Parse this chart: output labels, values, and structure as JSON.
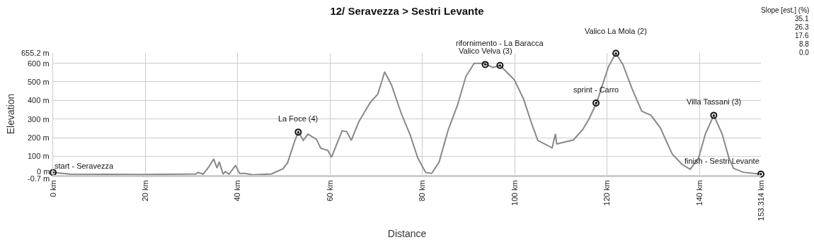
{
  "chart_data": {
    "type": "line",
    "title": "12/ Seravezza > Sestri Levante",
    "xlabel": "Distance",
    "ylabel": "Elevation",
    "x": [
      0.1,
      3.8,
      19.2,
      27.3,
      30.9,
      31.4,
      32.5,
      33.7,
      34.8,
      35.5,
      36.0,
      36.8,
      37.3,
      38.1,
      39.5,
      40.4,
      41.6,
      43.2,
      47.3,
      49.8,
      50.8,
      52.4,
      53.1,
      54.2,
      55.2,
      57.0,
      58.0,
      59.5,
      60.3,
      62.6,
      63.6,
      64.6,
      66.2,
      68.7,
      70.3,
      71.3,
      71.8,
      73.3,
      75.4,
      77.4,
      79.0,
      80.7,
      82.0,
      83.6,
      85.6,
      87.6,
      89.4,
      91.2,
      93.3,
      95.3,
      96.8,
      99.9,
      101.9,
      103.5,
      105.0,
      108.1,
      108.8,
      109.1,
      112.7,
      114.7,
      116.0,
      117.7,
      120.3,
      121.9,
      123.4,
      125.4,
      127.5,
      129.5,
      131.5,
      134.1,
      136.2,
      138.0,
      139.8,
      141.3,
      143.1,
      144.9,
      146.4,
      147.4,
      149.5,
      153.3
    ],
    "series": [
      {
        "color": "#888888",
        "values": [
          13,
          4,
          2,
          4,
          5,
          13,
          4,
          42,
          85,
          37,
          70,
          4,
          18,
          4,
          50,
          8,
          8,
          0,
          5,
          33,
          66,
          186,
          230,
          186,
          219,
          192,
          143,
          132,
          95,
          237,
          232,
          186,
          285,
          389,
          433,
          510,
          554,
          483,
          331,
          211,
          90,
          13,
          8,
          68,
          243,
          375,
          528,
          599,
          599,
          577,
          588,
          511,
          408,
          287,
          185,
          145,
          220,
          166,
          188,
          243,
          297,
          385,
          582,
          653,
          594,
          463,
          342,
          320,
          254,
          112,
          57,
          30,
          90,
          221,
          320,
          221,
          90,
          35,
          14,
          4
        ]
      }
    ],
    "xlim": [
      0,
      153.314
    ],
    "xticks": [
      {
        "value": 0,
        "label": "0 km"
      },
      {
        "value": 20,
        "label": "20 km"
      },
      {
        "value": 40,
        "label": "40 km"
      },
      {
        "value": 60,
        "label": "60 km"
      },
      {
        "value": 80,
        "label": "80 km"
      },
      {
        "value": 100,
        "label": "100 km"
      },
      {
        "value": 120,
        "label": "120 km"
      },
      {
        "value": 140,
        "label": "140 km"
      },
      {
        "value": 153.314,
        "label": "153.314 km"
      }
    ],
    "ylim": [
      -0.7,
      655.2
    ],
    "yticks": [
      {
        "value": -0.7,
        "label": "-0.7 m"
      },
      {
        "value": 0,
        "label": "0 m"
      },
      {
        "value": 100,
        "label": "100 m"
      },
      {
        "value": 200,
        "label": "200 m"
      },
      {
        "value": 300,
        "label": "300 m"
      },
      {
        "value": 400,
        "label": "400 m"
      },
      {
        "value": 500,
        "label": "500 m"
      },
      {
        "value": 600,
        "label": "600 m"
      },
      {
        "value": 655.2,
        "label": "655.2 m"
      }
    ],
    "grid": true,
    "annotations": [
      {
        "text": "start - Seravezza",
        "x": 0,
        "y": 13
      },
      {
        "text": "La Foce (4)",
        "x": 53.1,
        "y": 230
      },
      {
        "text": "Valico Velva (3)",
        "x": 93.6,
        "y": 593
      },
      {
        "text": "rifornimento - La Baracca",
        "x": 96.8,
        "y": 588
      },
      {
        "text": "sprint - Carro",
        "x": 117.6,
        "y": 386
      },
      {
        "text": "Valico La Mola (2)",
        "x": 121.9,
        "y": 653
      },
      {
        "text": "Villa Tassani (3)",
        "x": 143.1,
        "y": 320
      },
      {
        "text": "finish - Sestri Levante",
        "x": 153.314,
        "y": 4
      },
      "Slope [est.] (%)",
      "35.1",
      "26.3",
      "17.6",
      "8.8",
      "0.0"
    ]
  }
}
